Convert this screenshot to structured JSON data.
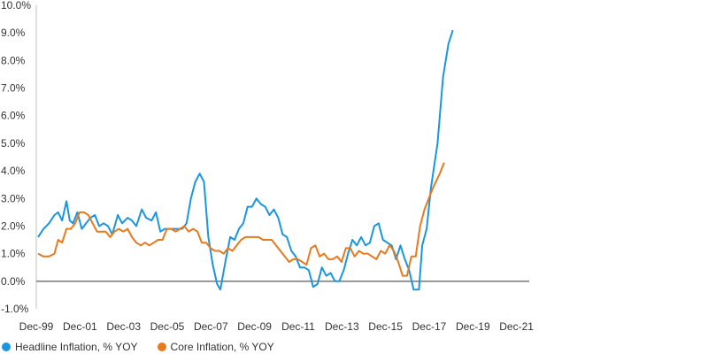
{
  "chart_data": {
    "type": "line",
    "title": "",
    "xlabel": "",
    "ylabel": "",
    "ylim": [
      -1.0,
      10.0
    ],
    "y_ticks": [
      -1.0,
      0.0,
      1.0,
      2.0,
      3.0,
      4.0,
      5.0,
      6.0,
      7.0,
      8.0,
      9.0,
      10.0
    ],
    "y_tick_labels": [
      "-1.0%",
      "0.0%",
      "1.0%",
      "2.0%",
      "3.0%",
      "4.0%",
      "5.0%",
      "6.0%",
      "7.0%",
      "8.0%",
      "9.0%",
      "10.0%"
    ],
    "xlim": [
      1999.917,
      2022.5
    ],
    "x_ticks": [
      1999.917,
      2001.917,
      2003.917,
      2005.917,
      2007.917,
      2009.917,
      2011.917,
      2013.917,
      2015.917,
      2017.917,
      2019.917,
      2021.917
    ],
    "x_tick_labels": [
      "Dec-99",
      "Dec-01",
      "Dec-03",
      "Dec-05",
      "Dec-07",
      "Dec-09",
      "Dec-11",
      "Dec-13",
      "Dec-15",
      "Dec-17",
      "Dec-19",
      "Dec-21"
    ],
    "grid": false,
    "legend_position": "bottom-left",
    "series": [
      {
        "name": "Headline Inflation, % YOY",
        "color": "#1a96e0",
        "points": [
          [
            2000.0,
            1.6
          ],
          [
            2000.25,
            1.9
          ],
          [
            2000.5,
            2.1
          ],
          [
            2000.75,
            2.4
          ],
          [
            2000.92,
            2.5
          ],
          [
            2001.1,
            2.2
          ],
          [
            2001.3,
            2.9
          ],
          [
            2001.45,
            2.2
          ],
          [
            2001.6,
            2.1
          ],
          [
            2001.8,
            2.5
          ],
          [
            2002.0,
            1.9
          ],
          [
            2002.2,
            2.1
          ],
          [
            2002.4,
            2.3
          ],
          [
            2002.6,
            2.4
          ],
          [
            2002.8,
            2.0
          ],
          [
            2003.0,
            2.1
          ],
          [
            2003.2,
            2.0
          ],
          [
            2003.4,
            1.7
          ],
          [
            2003.65,
            2.4
          ],
          [
            2003.85,
            2.1
          ],
          [
            2004.1,
            2.3
          ],
          [
            2004.3,
            2.2
          ],
          [
            2004.5,
            2.0
          ],
          [
            2004.75,
            2.6
          ],
          [
            2004.95,
            2.3
          ],
          [
            2005.2,
            2.2
          ],
          [
            2005.4,
            2.5
          ],
          [
            2005.6,
            1.8
          ],
          [
            2005.8,
            1.9
          ],
          [
            2006.2,
            1.9
          ],
          [
            2006.4,
            1.9
          ],
          [
            2006.6,
            1.9
          ],
          [
            2006.8,
            2.1
          ],
          [
            2007.0,
            3.0
          ],
          [
            2007.2,
            3.6
          ],
          [
            2007.4,
            3.9
          ],
          [
            2007.6,
            3.6
          ],
          [
            2007.8,
            1.6
          ],
          [
            2008.0,
            0.6
          ],
          [
            2008.2,
            -0.1
          ],
          [
            2008.35,
            -0.3
          ],
          [
            2008.6,
            0.8
          ],
          [
            2008.8,
            1.6
          ],
          [
            2009.0,
            1.5
          ],
          [
            2009.2,
            1.9
          ],
          [
            2009.4,
            2.1
          ],
          [
            2009.6,
            2.7
          ],
          [
            2009.8,
            2.7
          ],
          [
            2010.0,
            3.0
          ],
          [
            2010.2,
            2.8
          ],
          [
            2010.4,
            2.7
          ],
          [
            2010.6,
            2.4
          ],
          [
            2010.8,
            2.6
          ],
          [
            2011.0,
            2.3
          ],
          [
            2011.2,
            1.7
          ],
          [
            2011.4,
            1.6
          ],
          [
            2011.6,
            1.1
          ],
          [
            2011.8,
            0.9
          ],
          [
            2012.0,
            0.5
          ],
          [
            2012.2,
            0.5
          ],
          [
            2012.4,
            0.4
          ],
          [
            2012.6,
            -0.2
          ],
          [
            2012.8,
            -0.1
          ],
          [
            2013.0,
            0.5
          ],
          [
            2013.2,
            0.2
          ],
          [
            2013.4,
            0.3
          ],
          [
            2013.6,
            0.0
          ],
          [
            2013.8,
            0.0
          ],
          [
            2014.0,
            0.4
          ],
          [
            2014.2,
            1.0
          ],
          [
            2014.4,
            1.5
          ],
          [
            2014.6,
            1.3
          ],
          [
            2014.8,
            1.6
          ],
          [
            2015.0,
            1.3
          ],
          [
            2015.2,
            1.4
          ],
          [
            2015.4,
            2.0
          ],
          [
            2015.6,
            2.1
          ],
          [
            2015.8,
            1.5
          ],
          [
            2016.0,
            1.4
          ],
          [
            2016.2,
            1.3
          ],
          [
            2016.4,
            0.8
          ],
          [
            2016.6,
            1.3
          ],
          [
            2016.8,
            0.8
          ],
          [
            2017.0,
            0.4
          ],
          [
            2017.2,
            -0.3
          ],
          [
            2017.45,
            -0.3
          ],
          [
            2017.6,
            1.3
          ],
          [
            2017.8,
            1.9
          ],
          [
            2018.0,
            3.4
          ],
          [
            2018.3,
            5.0
          ],
          [
            2018.55,
            7.4
          ],
          [
            2018.8,
            8.6
          ],
          [
            2019.0,
            9.1
          ]
        ]
      },
      {
        "name": "Core Inflation, % YOY",
        "color": "#e87a1e",
        "points": [
          [
            2000.0,
            1.0
          ],
          [
            2000.25,
            0.9
          ],
          [
            2000.5,
            0.9
          ],
          [
            2000.75,
            1.0
          ],
          [
            2000.92,
            1.5
          ],
          [
            2001.1,
            1.4
          ],
          [
            2001.3,
            1.9
          ],
          [
            2001.5,
            1.9
          ],
          [
            2001.7,
            2.1
          ],
          [
            2001.9,
            2.5
          ],
          [
            2002.1,
            2.5
          ],
          [
            2002.3,
            2.4
          ],
          [
            2002.5,
            2.1
          ],
          [
            2002.7,
            1.8
          ],
          [
            2002.9,
            1.8
          ],
          [
            2003.1,
            1.8
          ],
          [
            2003.3,
            1.6
          ],
          [
            2003.5,
            1.8
          ],
          [
            2003.7,
            1.9
          ],
          [
            2003.9,
            1.8
          ],
          [
            2004.1,
            1.9
          ],
          [
            2004.3,
            1.6
          ],
          [
            2004.5,
            1.4
          ],
          [
            2004.7,
            1.3
          ],
          [
            2004.9,
            1.4
          ],
          [
            2005.1,
            1.3
          ],
          [
            2005.3,
            1.4
          ],
          [
            2005.5,
            1.5
          ],
          [
            2005.7,
            1.5
          ],
          [
            2005.9,
            1.9
          ],
          [
            2006.1,
            1.9
          ],
          [
            2006.3,
            1.8
          ],
          [
            2006.5,
            1.9
          ],
          [
            2006.7,
            2.0
          ],
          [
            2006.9,
            1.8
          ],
          [
            2007.1,
            1.9
          ],
          [
            2007.3,
            1.8
          ],
          [
            2007.5,
            1.4
          ],
          [
            2007.7,
            1.4
          ],
          [
            2007.9,
            1.2
          ],
          [
            2008.1,
            1.1
          ],
          [
            2008.3,
            1.1
          ],
          [
            2008.5,
            1.0
          ],
          [
            2008.7,
            1.2
          ],
          [
            2008.9,
            1.1
          ],
          [
            2009.1,
            1.3
          ],
          [
            2009.3,
            1.5
          ],
          [
            2009.5,
            1.6
          ],
          [
            2009.7,
            1.6
          ],
          [
            2009.9,
            1.6
          ],
          [
            2010.1,
            1.6
          ],
          [
            2010.3,
            1.5
          ],
          [
            2010.5,
            1.5
          ],
          [
            2010.7,
            1.5
          ],
          [
            2010.9,
            1.3
          ],
          [
            2011.1,
            1.1
          ],
          [
            2011.3,
            0.9
          ],
          [
            2011.5,
            0.7
          ],
          [
            2011.7,
            0.8
          ],
          [
            2011.9,
            0.8
          ],
          [
            2012.1,
            0.7
          ],
          [
            2012.3,
            0.6
          ],
          [
            2012.5,
            1.2
          ],
          [
            2012.7,
            1.3
          ],
          [
            2012.9,
            0.9
          ],
          [
            2013.1,
            1.0
          ],
          [
            2013.3,
            0.8
          ],
          [
            2013.5,
            0.8
          ],
          [
            2013.7,
            0.9
          ],
          [
            2013.9,
            0.7
          ],
          [
            2014.1,
            1.2
          ],
          [
            2014.3,
            1.2
          ],
          [
            2014.5,
            0.9
          ],
          [
            2014.7,
            1.1
          ],
          [
            2014.9,
            1.0
          ],
          [
            2015.1,
            1.0
          ],
          [
            2015.3,
            0.9
          ],
          [
            2015.5,
            0.8
          ],
          [
            2015.7,
            1.1
          ],
          [
            2015.9,
            1.0
          ],
          [
            2016.1,
            1.3
          ],
          [
            2016.3,
            1.1
          ],
          [
            2016.5,
            0.7
          ],
          [
            2016.7,
            0.2
          ],
          [
            2016.9,
            0.2
          ],
          [
            2017.1,
            0.9
          ],
          [
            2017.3,
            0.9
          ],
          [
            2017.5,
            2.0
          ],
          [
            2017.7,
            2.6
          ],
          [
            2017.9,
            3.0
          ],
          [
            2018.1,
            3.4
          ],
          [
            2018.4,
            3.9
          ],
          [
            2018.6,
            4.3
          ]
        ]
      }
    ]
  }
}
